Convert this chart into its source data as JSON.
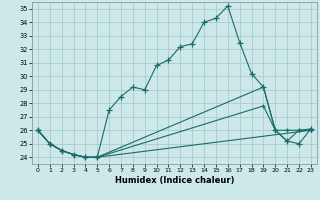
{
  "bg_color": "#cce8e8",
  "grid_color": "#aacccc",
  "line_color": "#1a6b6b",
  "xlabel": "Humidex (Indice chaleur)",
  "xlim": [
    -0.5,
    23.5
  ],
  "ylim": [
    23.5,
    35.5
  ],
  "yticks": [
    24,
    25,
    26,
    27,
    28,
    29,
    30,
    31,
    32,
    33,
    34,
    35
  ],
  "xticks": [
    0,
    1,
    2,
    3,
    4,
    5,
    6,
    7,
    8,
    9,
    10,
    11,
    12,
    13,
    14,
    15,
    16,
    17,
    18,
    19,
    20,
    21,
    22,
    23
  ],
  "line1_x": [
    0,
    1,
    2,
    3,
    4,
    5,
    6,
    7,
    8,
    9,
    10,
    11,
    12,
    13,
    14,
    15,
    16,
    17,
    18,
    19,
    20,
    21,
    22,
    23
  ],
  "line1_y": [
    26.0,
    25.0,
    24.5,
    24.2,
    24.0,
    24.0,
    27.5,
    28.5,
    29.2,
    29.0,
    30.8,
    31.2,
    32.2,
    32.4,
    34.0,
    34.3,
    35.2,
    32.5,
    30.2,
    29.2,
    26.0,
    25.2,
    25.0,
    26.1
  ],
  "line2_x": [
    0,
    1,
    2,
    3,
    4,
    5,
    23
  ],
  "line2_y": [
    26.0,
    25.0,
    24.5,
    24.2,
    24.0,
    24.0,
    26.0
  ],
  "line3_x": [
    0,
    1,
    2,
    3,
    4,
    5,
    19,
    20,
    21,
    22,
    23
  ],
  "line3_y": [
    26.0,
    25.0,
    24.5,
    24.2,
    24.0,
    24.0,
    27.8,
    26.0,
    26.0,
    26.0,
    26.0
  ],
  "line4_x": [
    0,
    1,
    2,
    3,
    4,
    5,
    19,
    20,
    21,
    22,
    23
  ],
  "line4_y": [
    26.0,
    25.0,
    24.5,
    24.2,
    24.0,
    24.0,
    29.2,
    26.0,
    25.2,
    26.0,
    26.1
  ]
}
